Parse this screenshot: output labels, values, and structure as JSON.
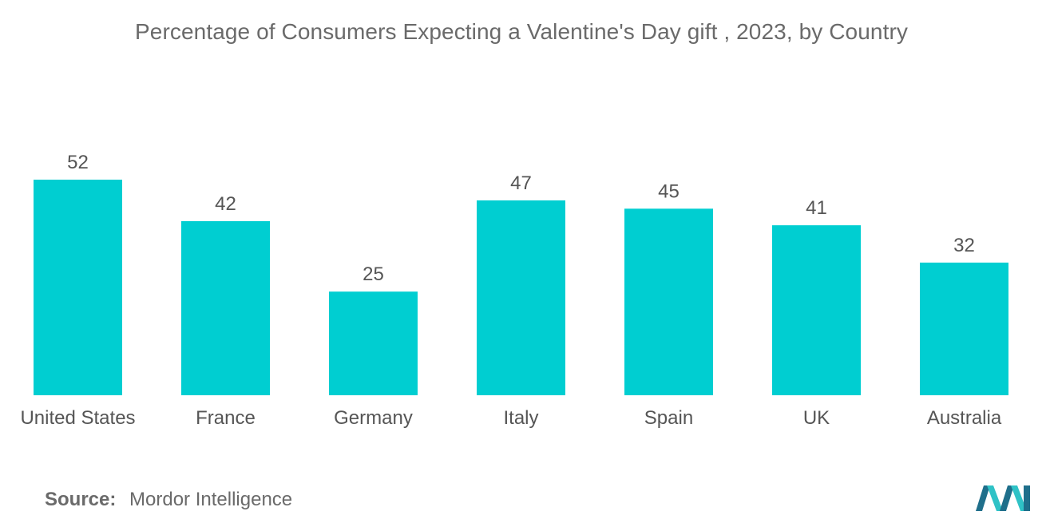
{
  "chart_data": {
    "type": "bar",
    "title": "Percentage of Consumers Expecting a Valentine's Day gift , 2023, by Country",
    "categories": [
      "United States",
      "France",
      "Germany",
      "Italy",
      "Spain",
      "UK",
      "Australia"
    ],
    "values": [
      52,
      42,
      25,
      47,
      45,
      41,
      32
    ],
    "xlabel": "",
    "ylabel": "",
    "ylim": [
      0,
      52
    ],
    "grid": false,
    "bar_color": "#00ced1"
  },
  "source": {
    "label": "Source:",
    "text": "Mordor Intelligence"
  },
  "colors": {
    "logo_dark": "#1f6f8b",
    "logo_light": "#2fc2c6"
  }
}
